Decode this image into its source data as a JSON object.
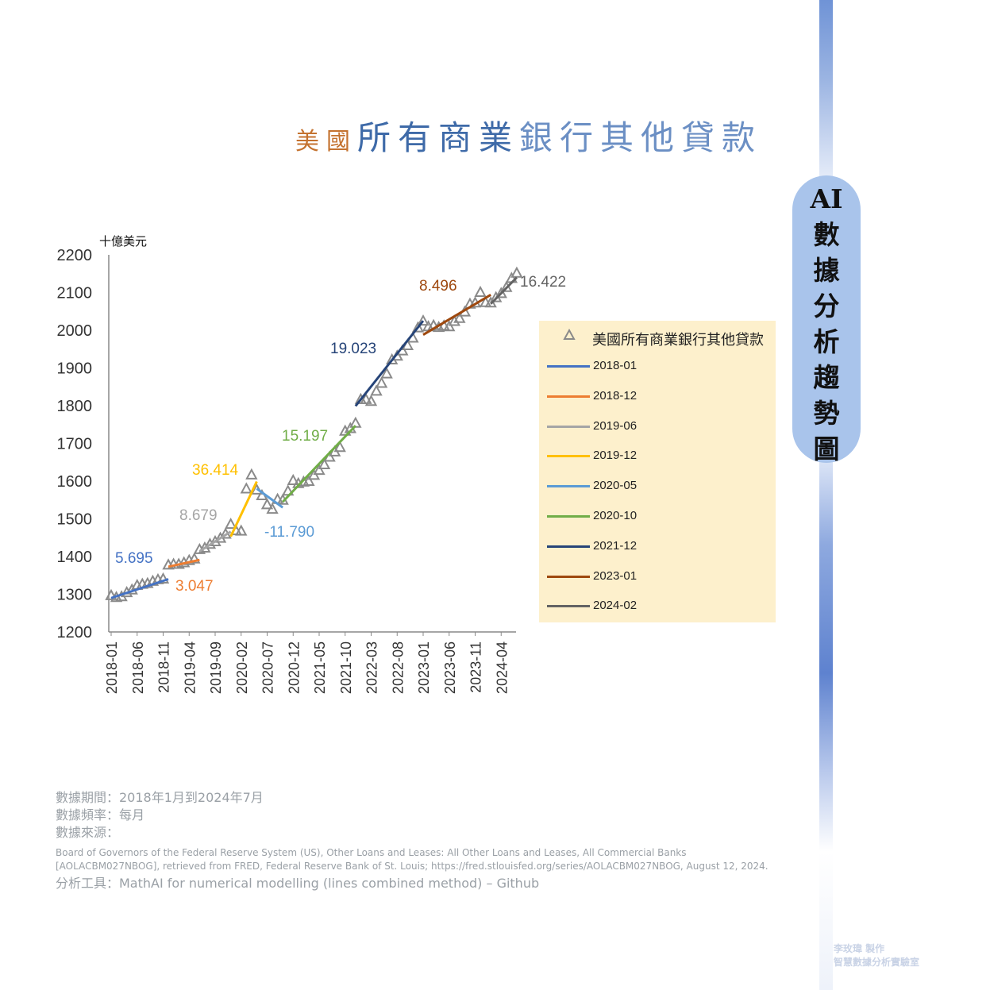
{
  "title": {
    "part1": "美國",
    "part2": "所有商業",
    "part3": "銀行其他貸款"
  },
  "side_label": [
    "AI",
    "數",
    "據",
    "分",
    "析",
    "趨",
    "勢",
    "圖"
  ],
  "colors": {
    "series_marker": "#8a8a8a",
    "2018-01": "#4472c4",
    "2018-12": "#ed7d31",
    "2019-06": "#a5a5a5",
    "2019-12": "#ffc000",
    "2020-05": "#5b9bd5",
    "2020-10": "#70ad47",
    "2021-12": "#264478",
    "2023-01": "#9e480e",
    "2024-02": "#636363"
  },
  "chart_data": {
    "type": "line",
    "title": "美國所有商業銀行其他貸款",
    "ylabel": "十億美元",
    "ylim": [
      1200,
      2200
    ],
    "yticks": [
      1200,
      1300,
      1400,
      1500,
      1600,
      1700,
      1800,
      1900,
      2000,
      2100,
      2200
    ],
    "xticks": [
      "2018-01",
      "2018-06",
      "2018-11",
      "2019-04",
      "2019-09",
      "2020-02",
      "2020-07",
      "2020-12",
      "2021-05",
      "2021-10",
      "2022-03",
      "2022-08",
      "2023-01",
      "2023-06",
      "2023-11",
      "2024-04"
    ],
    "legend_position": "right",
    "series": [
      {
        "name": "美國所有商業銀行其他貸款",
        "marker": "triangle",
        "x": [
          "2018-01",
          "2018-02",
          "2018-03",
          "2018-04",
          "2018-05",
          "2018-06",
          "2018-07",
          "2018-08",
          "2018-09",
          "2018-10",
          "2018-11",
          "2018-12",
          "2019-01",
          "2019-02",
          "2019-03",
          "2019-04",
          "2019-05",
          "2019-06",
          "2019-07",
          "2019-08",
          "2019-09",
          "2019-10",
          "2019-11",
          "2019-12",
          "2020-01",
          "2020-02",
          "2020-03",
          "2020-04",
          "2020-05",
          "2020-06",
          "2020-07",
          "2020-08",
          "2020-09",
          "2020-10",
          "2020-11",
          "2020-12",
          "2021-01",
          "2021-02",
          "2021-03",
          "2021-04",
          "2021-05",
          "2021-06",
          "2021-07",
          "2021-08",
          "2021-09",
          "2021-10",
          "2021-11",
          "2021-12",
          "2022-01",
          "2022-02",
          "2022-03",
          "2022-04",
          "2022-05",
          "2022-06",
          "2022-07",
          "2022-08",
          "2022-09",
          "2022-10",
          "2022-11",
          "2022-12",
          "2023-01",
          "2023-02",
          "2023-03",
          "2023-04",
          "2023-05",
          "2023-06",
          "2023-07",
          "2023-08",
          "2023-09",
          "2023-10",
          "2023-11",
          "2023-12",
          "2024-01",
          "2024-02",
          "2024-03",
          "2024-04",
          "2024-05",
          "2024-06",
          "2024-07"
        ],
        "values": [
          1295,
          1290,
          1292,
          1303,
          1310,
          1322,
          1325,
          1327,
          1333,
          1337,
          1339,
          1376,
          1378,
          1378,
          1382,
          1388,
          1392,
          1417,
          1421,
          1431,
          1438,
          1447,
          1458,
          1484,
          1467,
          1466,
          1578,
          1615,
          1575,
          1560,
          1536,
          1524,
          1550,
          1548,
          1572,
          1600,
          1592,
          1596,
          1598,
          1614,
          1627,
          1642,
          1662,
          1676,
          1688,
          1731,
          1738,
          1752,
          1815,
          1815,
          1810,
          1837,
          1858,
          1883,
          1920,
          1930,
          1944,
          1958,
          1978,
          2005,
          2023,
          2008,
          2011,
          2006,
          2010,
          2008,
          2022,
          2030,
          2047,
          2068,
          2071,
          2099,
          2072,
          2071,
          2085,
          2096,
          2112,
          2136,
          2150
        ]
      },
      {
        "name": "2018-01",
        "x": [
          "2018-01",
          "2018-12"
        ],
        "values": [
          1290,
          1340
        ],
        "slope_label": "5.695"
      },
      {
        "name": "2018-12",
        "x": [
          "2018-12",
          "2019-06"
        ],
        "values": [
          1373,
          1391
        ],
        "slope_label": "3.047"
      },
      {
        "name": "2019-06",
        "x": [
          "2019-06",
          "2019-12"
        ],
        "values": [
          1414,
          1466
        ],
        "slope_label": "8.679"
      },
      {
        "name": "2019-12",
        "x": [
          "2019-12",
          "2020-05"
        ],
        "values": [
          1453,
          1599
        ],
        "slope_label": "36.414"
      },
      {
        "name": "2020-05",
        "x": [
          "2020-05",
          "2020-10"
        ],
        "values": [
          1580,
          1530
        ],
        "slope_label": "-11.790"
      },
      {
        "name": "2020-10",
        "x": [
          "2020-10",
          "2021-12"
        ],
        "values": [
          1545,
          1747
        ],
        "slope_label": "15.197"
      },
      {
        "name": "2021-12",
        "x": [
          "2021-12",
          "2023-01"
        ],
        "values": [
          1799,
          2025
        ],
        "slope_label": "19.023"
      },
      {
        "name": "2023-01",
        "x": [
          "2023-01",
          "2024-02"
        ],
        "values": [
          1988,
          2094
        ],
        "slope_label": "8.496"
      },
      {
        "name": "2024-02",
        "x": [
          "2024-02",
          "2024-07"
        ],
        "values": [
          2070,
          2140
        ],
        "slope_label": "16.422"
      }
    ]
  },
  "footer": {
    "period": "數據期間：2018年1月到2024年7月",
    "frequency": "數據頻率：每月",
    "source_label": "數據來源：",
    "source_text": "Board of Governors of the Federal Reserve System (US), Other Loans and Leases: All Other Loans and Leases, All Commercial Banks [AOLACBM027NBOG], retrieved from FRED, Federal Reserve Bank of St. Louis; https://fred.stlouisfed.org/series/AOLACBM027NBOG, August 12, 2024.",
    "tool": "分析工具：MathAI for numerical modelling (lines combined method) – Github"
  },
  "watermark": {
    "line1": "李玫瑋 製作",
    "line2": "智慧數據分析實驗室"
  }
}
